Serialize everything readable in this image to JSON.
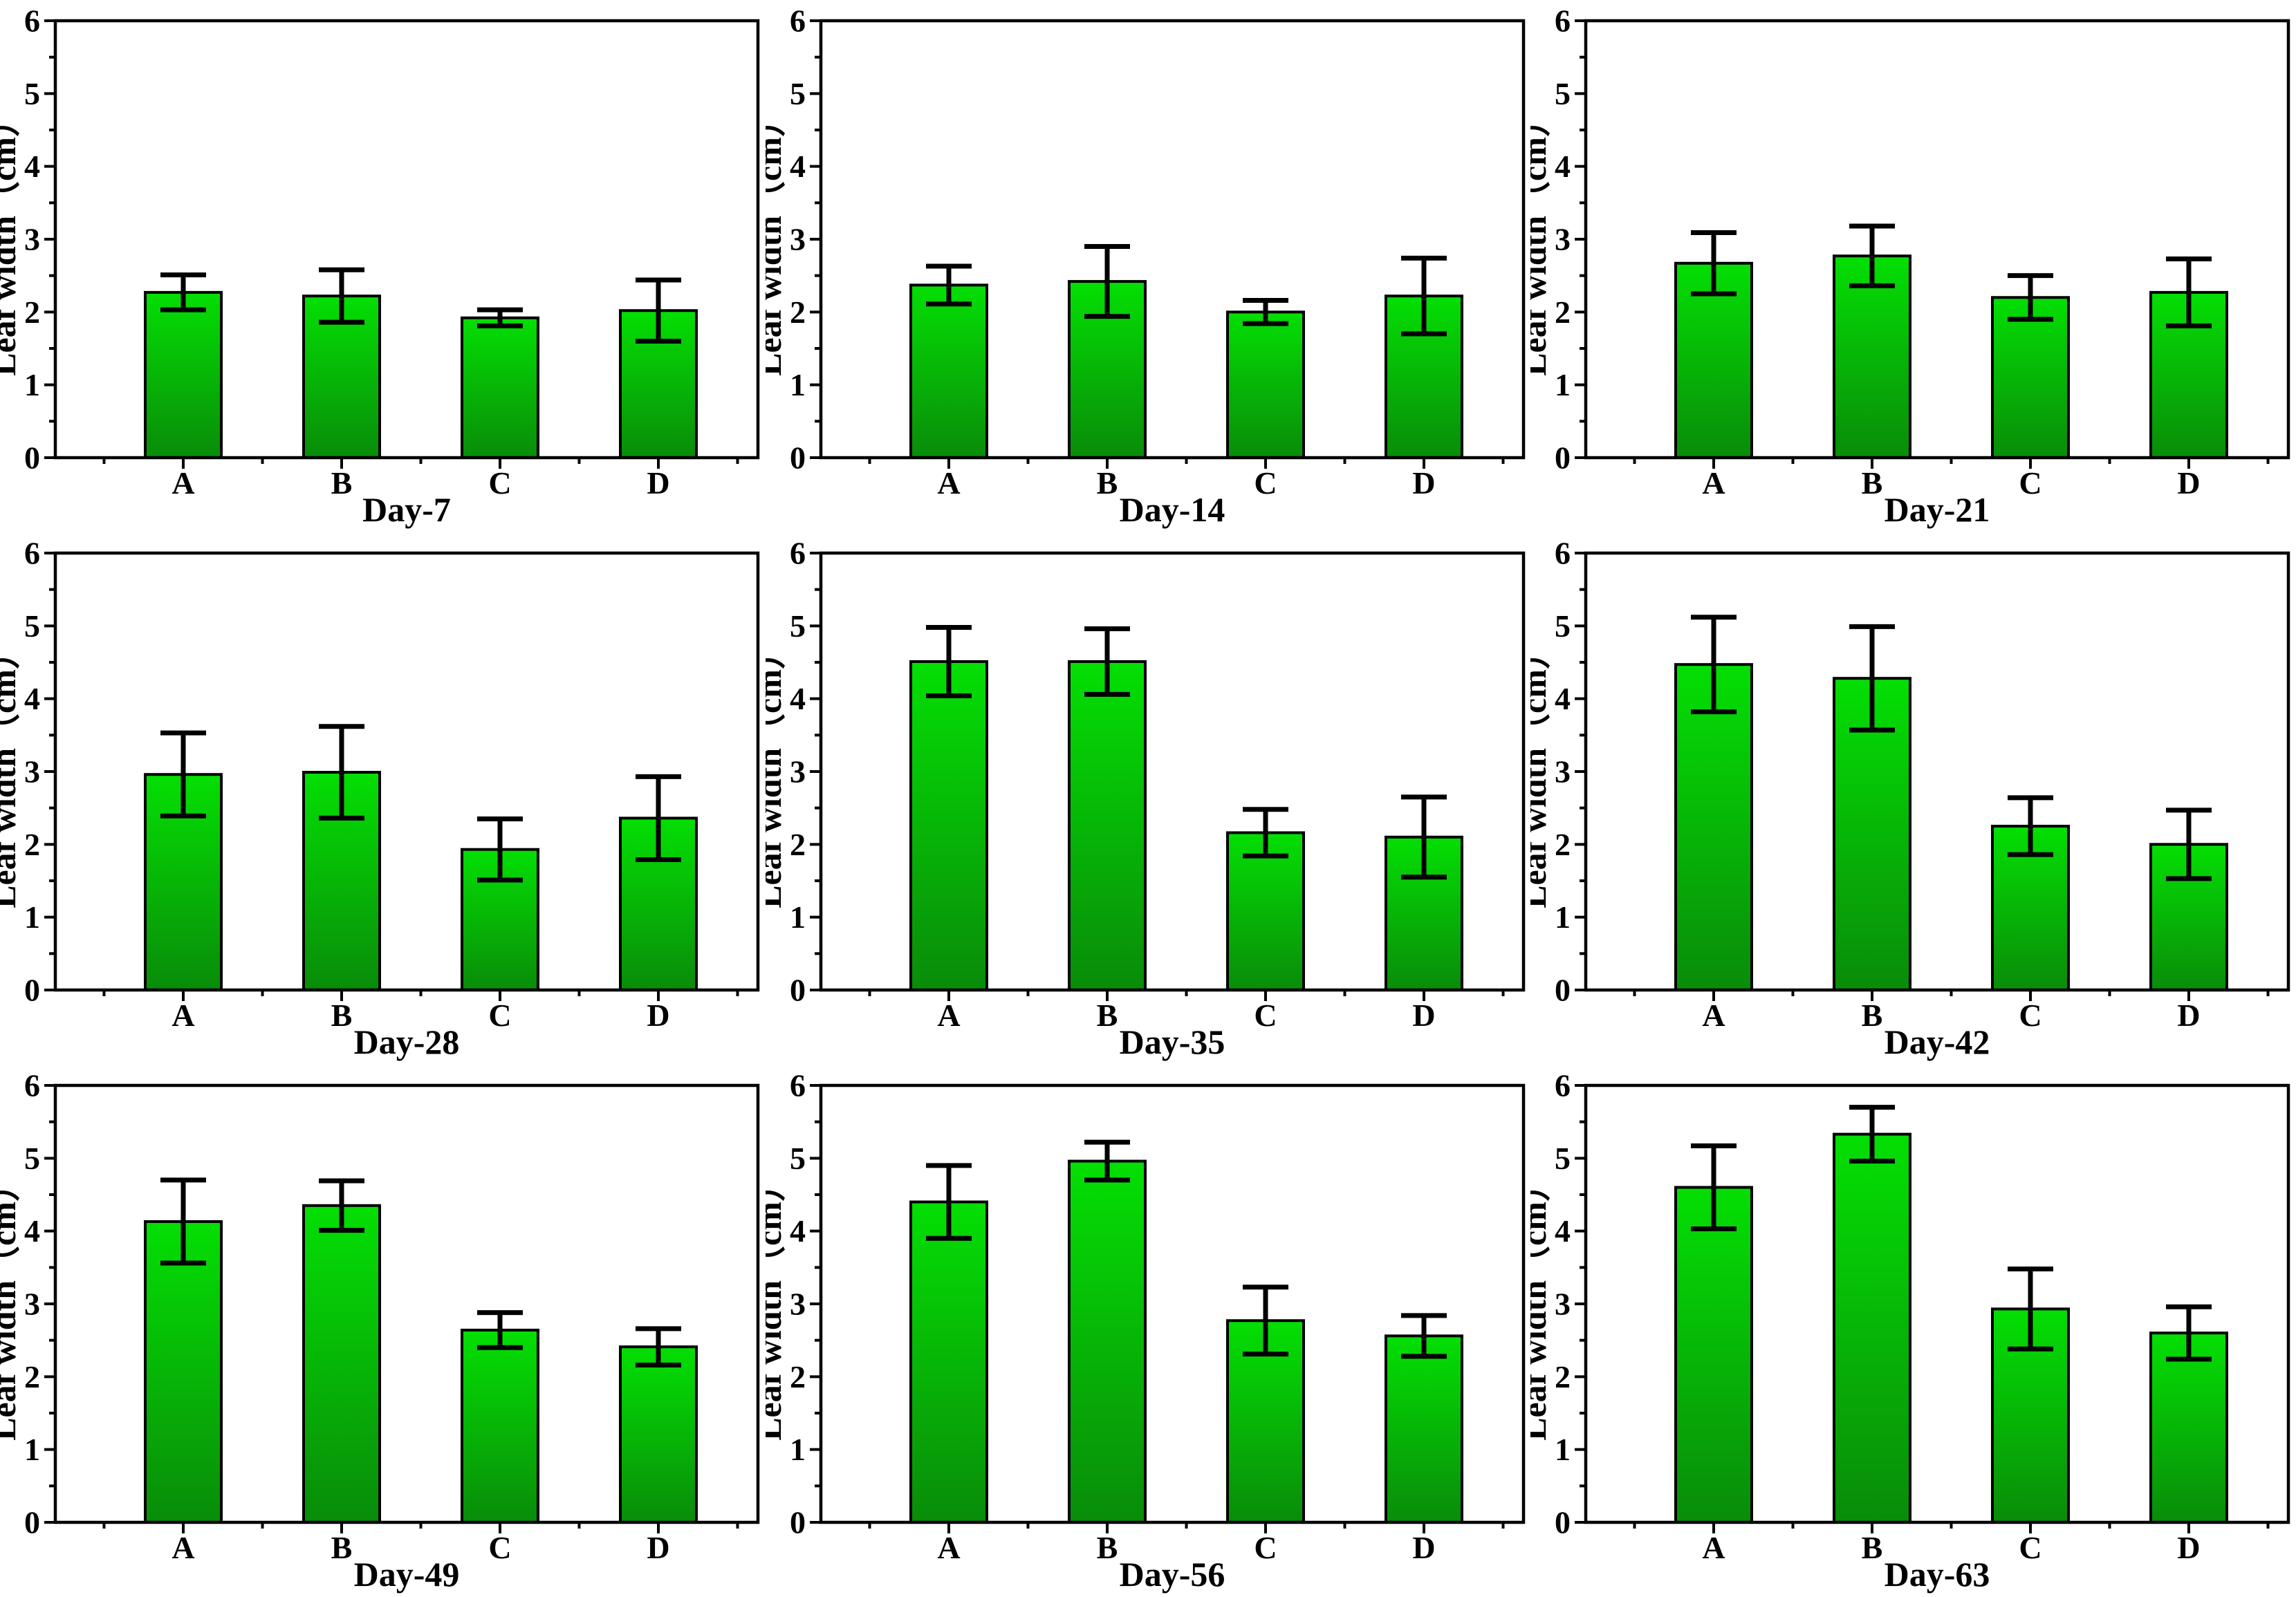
{
  "page": {
    "background": "#ffffff"
  },
  "chart_data": {
    "type": "bar",
    "layout": {
      "rows": 3,
      "cols": 3
    },
    "title": "",
    "ylabel": "Leaf width（cm）",
    "xlabel_per_panel": true,
    "ylim": [
      0,
      6
    ],
    "ytick_step": 1,
    "yminor_step": 0.5,
    "yticks": [
      0,
      1,
      2,
      3,
      4,
      5,
      6
    ],
    "categories": [
      "A",
      "B",
      "C",
      "D"
    ],
    "grid": "off",
    "legend": "none",
    "error_bars": "symmetric",
    "colors": {
      "bar_gradient_top": "#04df04",
      "bar_gradient_bottom": "#098c09",
      "bar_edge": "#000000",
      "error_bar": "#000000",
      "axis": "#000000",
      "background": "#ffffff"
    },
    "panels": [
      {
        "title": "Day-7",
        "values": [
          2.27,
          2.22,
          1.92,
          2.02
        ],
        "errors": [
          0.24,
          0.36,
          0.11,
          0.42
        ]
      },
      {
        "title": "Day-14",
        "values": [
          2.37,
          2.42,
          2.0,
          2.22
        ],
        "errors": [
          0.26,
          0.48,
          0.16,
          0.52
        ]
      },
      {
        "title": "Day-21",
        "values": [
          2.67,
          2.77,
          2.2,
          2.27
        ],
        "errors": [
          0.42,
          0.41,
          0.3,
          0.46
        ]
      },
      {
        "title": "Day-28",
        "values": [
          2.96,
          2.99,
          1.93,
          2.36
        ],
        "errors": [
          0.57,
          0.63,
          0.42,
          0.57
        ]
      },
      {
        "title": "Day-35",
        "values": [
          4.51,
          4.51,
          2.16,
          2.1
        ],
        "errors": [
          0.47,
          0.45,
          0.32,
          0.55
        ]
      },
      {
        "title": "Day-42",
        "values": [
          4.47,
          4.28,
          2.25,
          2.0
        ],
        "errors": [
          0.65,
          0.71,
          0.39,
          0.47
        ]
      },
      {
        "title": "Day-49",
        "values": [
          4.13,
          4.35,
          2.64,
          2.41
        ],
        "errors": [
          0.57,
          0.34,
          0.24,
          0.25
        ]
      },
      {
        "title": "Day-56",
        "values": [
          4.4,
          4.96,
          2.77,
          2.56
        ],
        "errors": [
          0.5,
          0.26,
          0.46,
          0.28
        ]
      },
      {
        "title": "Day-63",
        "values": [
          4.6,
          5.33,
          2.93,
          2.6
        ],
        "errors": [
          0.57,
          0.37,
          0.55,
          0.36
        ]
      }
    ]
  }
}
